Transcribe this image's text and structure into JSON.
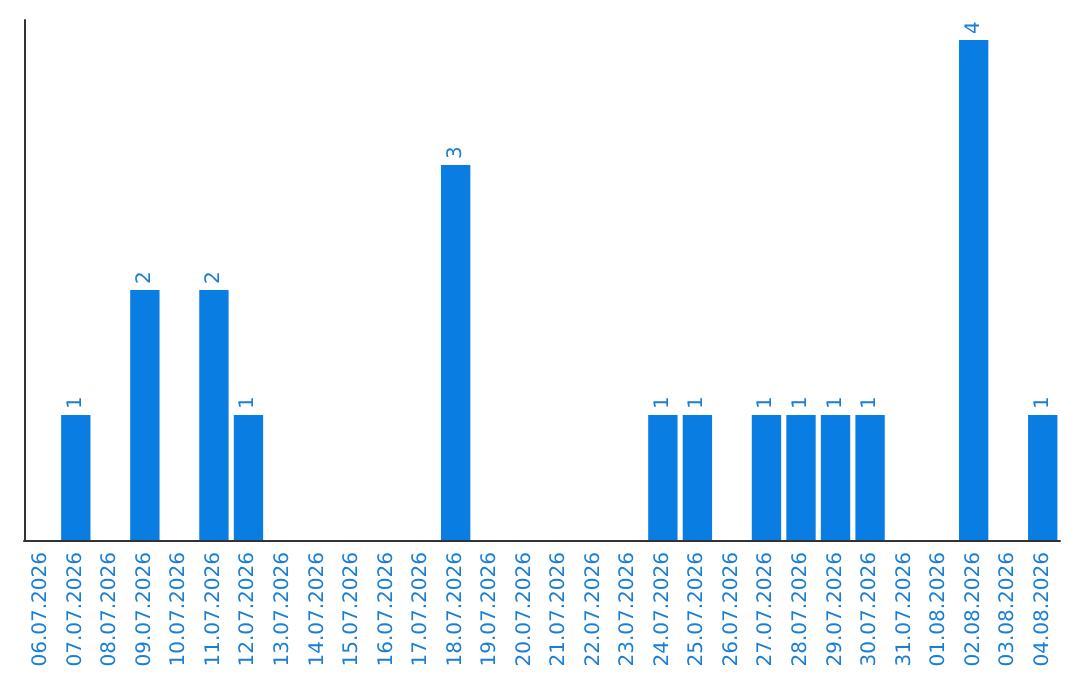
{
  "chart_data": {
    "type": "bar",
    "categories": [
      "06.07.2026",
      "07.07.2026",
      "08.07.2026",
      "09.07.2026",
      "10.07.2026",
      "11.07.2026",
      "12.07.2026",
      "13.07.2026",
      "14.07.2026",
      "15.07.2026",
      "16.07.2026",
      "17.07.2026",
      "18.07.2026",
      "19.07.2026",
      "20.07.2026",
      "21.07.2026",
      "22.07.2026",
      "23.07.2026",
      "24.07.2026",
      "25.07.2026",
      "26.07.2026",
      "27.07.2026",
      "28.07.2026",
      "29.07.2026",
      "30.07.2026",
      "31.07.2026",
      "01.08.2026",
      "02.08.2026",
      "03.08.2026",
      "04.08.2026"
    ],
    "values": [
      0,
      1,
      0,
      2,
      0,
      2,
      1,
      0,
      0,
      0,
      0,
      0,
      3,
      0,
      0,
      0,
      0,
      0,
      1,
      1,
      0,
      1,
      1,
      1,
      1,
      0,
      0,
      4,
      0,
      1
    ],
    "value_labels": [
      null,
      "1",
      null,
      "2",
      null,
      "2",
      "1",
      null,
      null,
      null,
      null,
      null,
      "3",
      null,
      null,
      null,
      null,
      null,
      "1",
      "1",
      null,
      "1",
      "1",
      "1",
      "1",
      null,
      null,
      "4",
      null,
      "1"
    ],
    "color": "#0a7de3"
  }
}
